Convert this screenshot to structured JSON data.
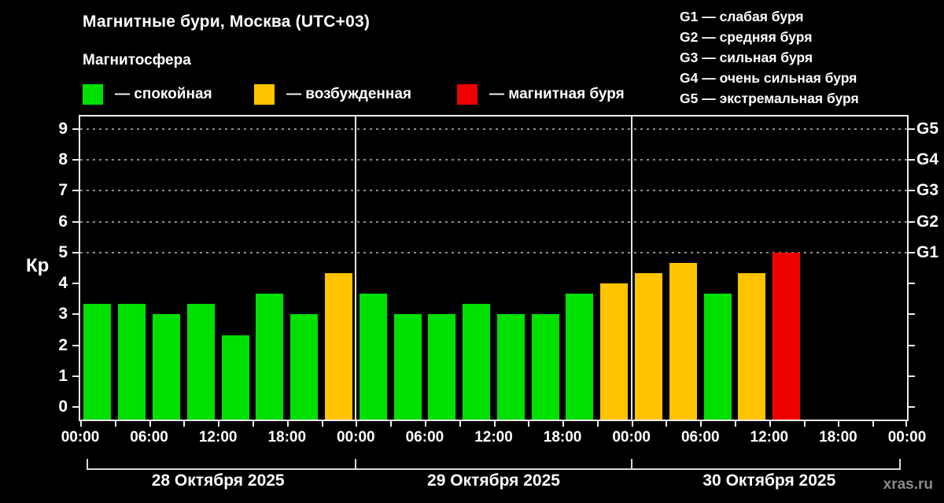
{
  "title": "Магнитные бури, Москва (UTC+03)",
  "subtitle": "Магнитосфера",
  "legend": [
    {
      "name": "quiet",
      "label": "— спокойная",
      "color": "#00e000"
    },
    {
      "name": "excited",
      "label": "— возбужденная",
      "color": "#ffc300"
    },
    {
      "name": "storm",
      "label": "— магнитная буря",
      "color": "#ee0000"
    }
  ],
  "storm_scale": [
    {
      "code": "G1",
      "label": "G1 — слабая буря"
    },
    {
      "code": "G2",
      "label": "G2 — средняя буря"
    },
    {
      "code": "G3",
      "label": "G3 — сильная буря"
    },
    {
      "code": "G4",
      "label": "G4 — очень сильная буря"
    },
    {
      "code": "G5",
      "label": "G5 — экстремальная буря"
    }
  ],
  "watermark": "xras.ru",
  "chart_data": {
    "type": "bar",
    "ylabel": "Кр",
    "ylim": [
      0,
      9
    ],
    "yticks": [
      0,
      1,
      2,
      3,
      4,
      5,
      6,
      7,
      8,
      9
    ],
    "gridlines": [
      5,
      6,
      7,
      8,
      9
    ],
    "grid_style": "dashed",
    "right_axis": [
      {
        "value": 5,
        "label": "G1"
      },
      {
        "value": 6,
        "label": "G2"
      },
      {
        "value": 7,
        "label": "G3"
      },
      {
        "value": 8,
        "label": "G4"
      },
      {
        "value": 9,
        "label": "G5"
      }
    ],
    "time_ticks": [
      "00:00",
      "06:00",
      "12:00",
      "18:00"
    ],
    "end_tick": "00:00",
    "hours_per_bar": 3,
    "state_colors": {
      "quiet": "#00e000",
      "excited": "#ffc300",
      "storm": "#ee0000"
    },
    "days": [
      {
        "date": "28 Октября 2025",
        "values": [
          3.33,
          3.33,
          3.0,
          3.33,
          2.33,
          3.67,
          3.0,
          4.33
        ],
        "states": [
          "quiet",
          "quiet",
          "quiet",
          "quiet",
          "quiet",
          "quiet",
          "quiet",
          "excited"
        ]
      },
      {
        "date": "29 Октября 2025",
        "values": [
          3.67,
          3.0,
          3.0,
          3.33,
          3.0,
          3.0,
          3.67,
          4.0
        ],
        "states": [
          "quiet",
          "quiet",
          "quiet",
          "quiet",
          "quiet",
          "quiet",
          "quiet",
          "excited"
        ]
      },
      {
        "date": "30 Октября 2025",
        "values": [
          4.33,
          4.67,
          3.67,
          4.33,
          5.0,
          null,
          null,
          null
        ],
        "states": [
          "excited",
          "excited",
          "quiet",
          "excited",
          "storm",
          null,
          null,
          null
        ]
      }
    ]
  }
}
